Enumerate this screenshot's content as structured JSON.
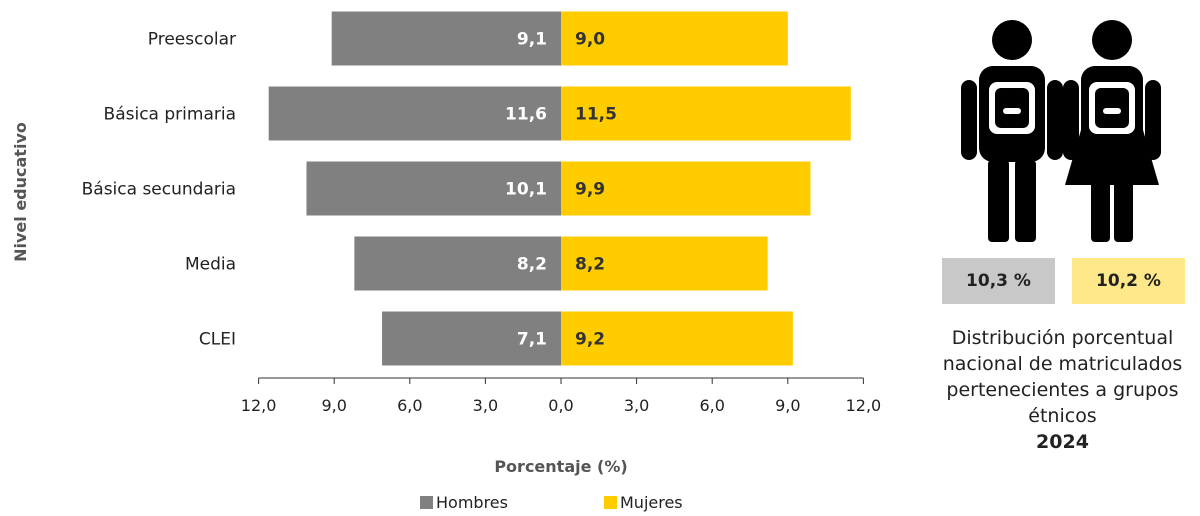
{
  "chart_data": {
    "type": "bar",
    "orientation": "horizontal-diverging",
    "categories": [
      "Preescolar",
      "Básica primaria",
      "Básica secundaria",
      "Media",
      "CLEI"
    ],
    "series": [
      {
        "name": "Hombres",
        "color": "#808080",
        "values": [
          9.1,
          11.6,
          10.1,
          8.2,
          7.1
        ],
        "labels": [
          "9,1",
          "11,6",
          "10,1",
          "8,2",
          "7,1"
        ]
      },
      {
        "name": "Mujeres",
        "color": "#ffcc00",
        "values": [
          9.0,
          11.5,
          9.9,
          8.2,
          9.2
        ],
        "labels": [
          "9,0",
          "11,5",
          "9,9",
          "8,2",
          "9,2"
        ]
      }
    ],
    "xlabel": "Porcentaje (%)",
    "ylabel": "Nivel educativo",
    "xlim": [
      -12,
      12
    ],
    "xticks": [
      "12,0",
      "9,0",
      "6,0",
      "3,0",
      "0,0",
      "3,0",
      "6,0",
      "9,0",
      "12,0"
    ],
    "grid": false,
    "legend_position": "bottom"
  },
  "info_panel": {
    "men_pct": "10,3 %",
    "women_pct": "10,2 %",
    "men_color": "#c8c8c8",
    "women_color": "#ffe88a",
    "caption_lines": [
      "Distribución porcentual",
      "nacional de matriculados",
      "pertenecientes a grupos",
      "étnicos"
    ],
    "year": "2024",
    "icons": [
      "male-student-icon",
      "female-student-icon"
    ]
  }
}
